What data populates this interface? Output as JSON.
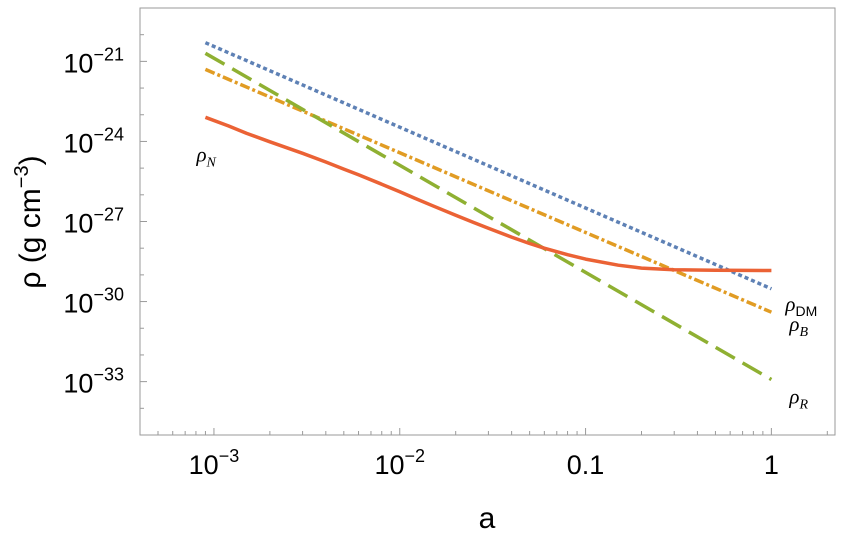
{
  "chart_data": {
    "type": "line",
    "title": "",
    "xlabel": "a",
    "ylabel": {
      "base": "ρ (g cm",
      "sup": "−3",
      "end": ")"
    },
    "xscale": "log",
    "yscale": "log",
    "xlim": [
      0.0004,
      2.2
    ],
    "ylim": [
      1e-35,
      1e-19
    ],
    "grid": false,
    "x_ticks": [
      {
        "value": 0.001,
        "base": "10",
        "sup": "−3"
      },
      {
        "value": 0.01,
        "base": "10",
        "sup": "−2"
      },
      {
        "value": 0.1,
        "base": "0.1",
        "sup": ""
      },
      {
        "value": 1,
        "base": "1",
        "sup": ""
      }
    ],
    "y_ticks": [
      {
        "value": 1e-21,
        "base": "10",
        "sup": "−21"
      },
      {
        "value": 1e-24,
        "base": "10",
        "sup": "−24"
      },
      {
        "value": 1e-27,
        "base": "10",
        "sup": "−27"
      },
      {
        "value": 1e-30,
        "base": "10",
        "sup": "−30"
      },
      {
        "value": 1e-33,
        "base": "10",
        "sup": "−33"
      }
    ],
    "series": [
      {
        "name": "ρDM",
        "label": {
          "main": "ρ",
          "sub": "DM",
          "sub_upright": true
        },
        "color": "#5e81b5",
        "dash": "4,3",
        "points": [
          [
            0.0009,
            5e-21
          ],
          [
            1.0,
            3e-30
          ]
        ]
      },
      {
        "name": "ρB",
        "label": {
          "main": "ρ",
          "sub": "B",
          "sub_upright": false
        },
        "color": "#e19c24",
        "dash": "10,3,3,3",
        "points": [
          [
            0.0009,
            5e-22
          ],
          [
            1.0,
            4e-31
          ]
        ]
      },
      {
        "name": "ρR",
        "label": {
          "main": "ρ",
          "sub": "R",
          "sub_upright": false
        },
        "color": "#8fb032",
        "dash": "22,9",
        "points": [
          [
            0.0009,
            2e-21
          ],
          [
            1.0,
            1.2e-33
          ]
        ]
      },
      {
        "name": "ρN",
        "label": {
          "main": "ρ",
          "sub": "N",
          "sub_upright": false
        },
        "color": "#eb6235",
        "dash": "",
        "points": [
          [
            0.0009,
            8e-24
          ],
          [
            0.0012,
            3.8e-24
          ],
          [
            0.0015,
            2e-24
          ],
          [
            0.002,
            9.7e-25
          ],
          [
            0.003,
            3.6e-25
          ],
          [
            0.004,
            1.7e-25
          ],
          [
            0.005,
            9.2e-26
          ],
          [
            0.006,
            5.6e-26
          ],
          [
            0.008,
            2.5e-26
          ],
          [
            0.01,
            1.3e-26
          ],
          [
            0.012,
            7.5e-27
          ],
          [
            0.015,
            3.9e-27
          ],
          [
            0.02,
            1.7e-27
          ],
          [
            0.025,
            9.2e-28
          ],
          [
            0.03,
            5.6e-28
          ],
          [
            0.04,
            2.6e-28
          ],
          [
            0.05,
            1.5e-28
          ],
          [
            0.06,
            1e-28
          ],
          [
            0.08,
            5.7e-29
          ],
          [
            0.1,
            3.9e-29
          ],
          [
            0.15,
            2.3e-29
          ],
          [
            0.2,
            1.8e-29
          ],
          [
            0.3,
            1.55e-29
          ],
          [
            0.5,
            1.48e-29
          ],
          [
            0.7,
            1.47e-29
          ],
          [
            1.0,
            1.46e-29
          ]
        ]
      }
    ]
  }
}
